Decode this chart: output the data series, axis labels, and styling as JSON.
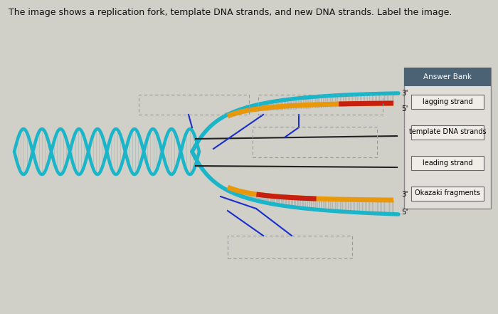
{
  "title": "The image shows a replication fork, template DNA strands, and new DNA strands. Label the image.",
  "bg_color": "#d0cfc8",
  "answer_bank_header": "Answer Bank",
  "answer_bank_header_bg": "#4a6274",
  "answer_bank_items": [
    "lagging strand",
    "template DNA strands",
    "leading strand",
    "Okazaki fragments"
  ],
  "teal_color": "#1ab5c8",
  "orange_color": "#e8980a",
  "red_color": "#c82010",
  "dark_color": "#222222",
  "blue_color": "#1a2ecc",
  "hatch_color": "#a0a8a8"
}
